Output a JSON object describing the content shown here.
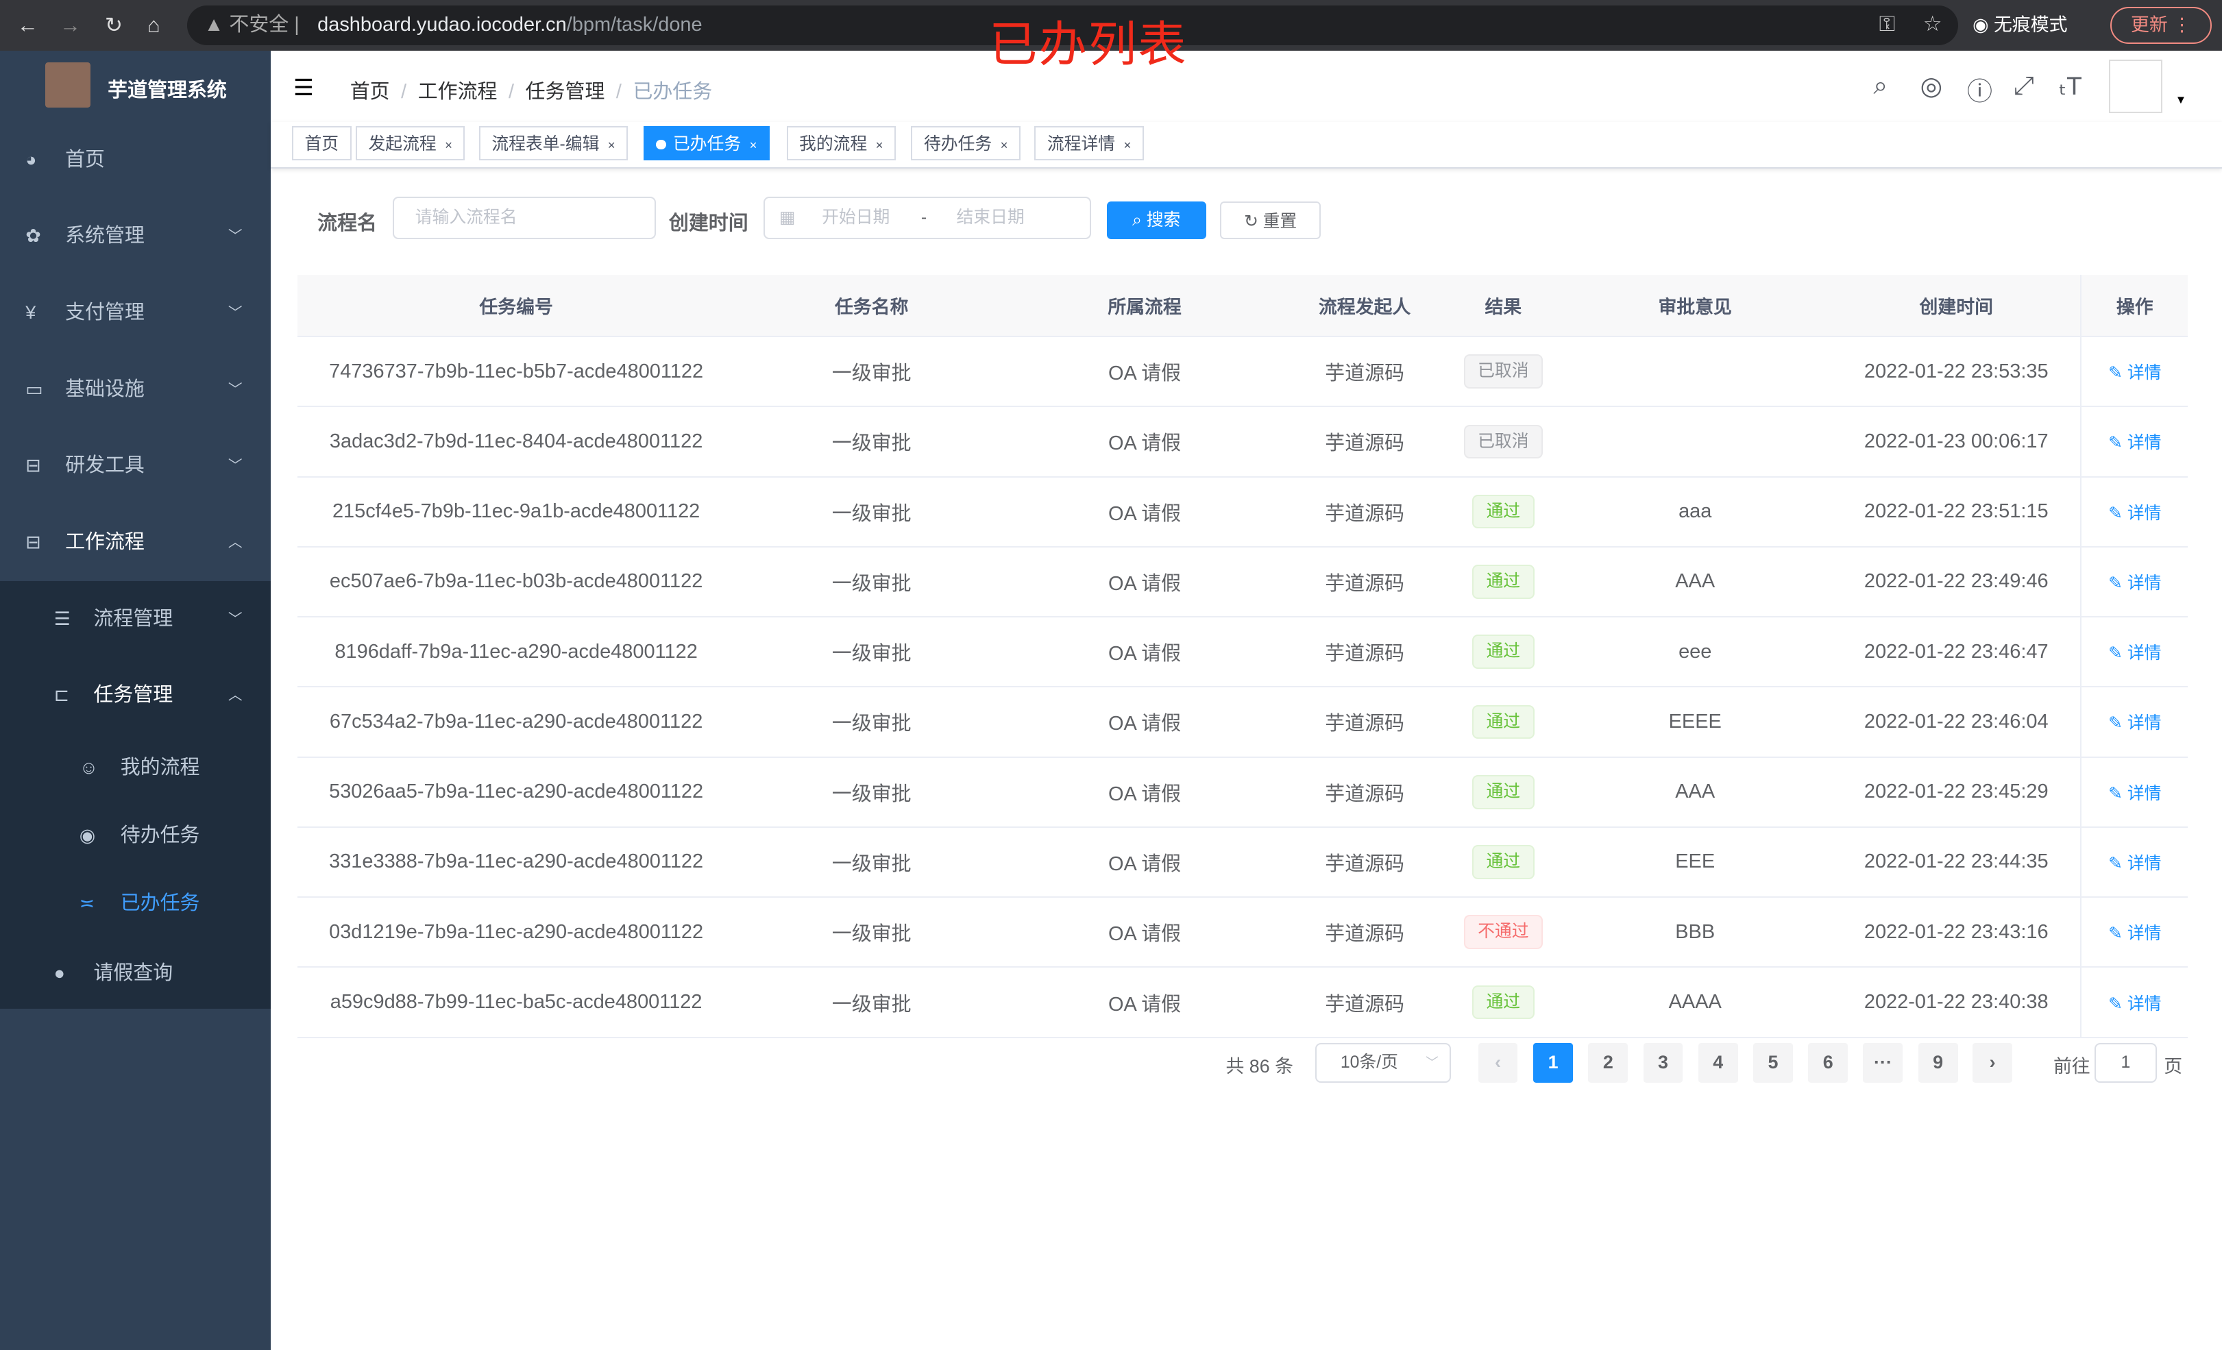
{
  "browser": {
    "insecure": "不安全",
    "url_host": "dashboard.yudao.iocoder.cn",
    "url_path": "/bpm/task/done",
    "incognito": "无痕模式",
    "update": "更新"
  },
  "annotation": "已办列表",
  "sidebar": {
    "brand": "芋道管理系统",
    "items": [
      {
        "label": "首页",
        "icon": "dashboard-icon"
      },
      {
        "label": "系统管理",
        "icon": "gear-icon"
      },
      {
        "label": "支付管理",
        "icon": "yen-icon"
      },
      {
        "label": "基础设施",
        "icon": "monitor-icon"
      },
      {
        "label": "研发工具",
        "icon": "toolbox-icon"
      },
      {
        "label": "工作流程",
        "icon": "toolbox-icon"
      },
      {
        "label": "流程管理",
        "icon": "list-icon"
      },
      {
        "label": "任务管理",
        "icon": "tree-icon"
      },
      {
        "label": "我的流程",
        "icon": "face-icon"
      },
      {
        "label": "待办任务",
        "icon": "eye-icon"
      },
      {
        "label": "已办任务",
        "icon": "eye-closed-icon"
      },
      {
        "label": "请假查询",
        "icon": "user-icon"
      }
    ]
  },
  "breadcrumb": [
    "首页",
    "工作流程",
    "任务管理",
    "已办任务"
  ],
  "tabs": [
    "首页",
    "发起流程",
    "流程表单-编辑",
    "已办任务",
    "我的流程",
    "待办任务",
    "流程详情"
  ],
  "search": {
    "name_label": "流程名",
    "name_placeholder": "请输入流程名",
    "time_label": "创建时间",
    "start_placeholder": "开始日期",
    "sep": "-",
    "end_placeholder": "结束日期",
    "search_btn": "搜索",
    "reset_btn": "重置"
  },
  "table": {
    "headers": [
      "任务编号",
      "任务名称",
      "所属流程",
      "流程发起人",
      "结果",
      "审批意见",
      "创建时间",
      "操作"
    ],
    "rows": [
      [
        "74736737-7b9b-11ec-b5b7-acde48001122",
        "一级审批",
        "OA 请假",
        "芋道源码",
        "已取消",
        "",
        "2022-01-22 23:53:35",
        "详情"
      ],
      [
        "3adac3d2-7b9d-11ec-8404-acde48001122",
        "一级审批",
        "OA 请假",
        "芋道源码",
        "已取消",
        "",
        "2022-01-23 00:06:17",
        "详情"
      ],
      [
        "215cf4e5-7b9b-11ec-9a1b-acde48001122",
        "一级审批",
        "OA 请假",
        "芋道源码",
        "通过",
        "aaa",
        "2022-01-22 23:51:15",
        "详情"
      ],
      [
        "ec507ae6-7b9a-11ec-b03b-acde48001122",
        "一级审批",
        "OA 请假",
        "芋道源码",
        "通过",
        "AAA",
        "2022-01-22 23:49:46",
        "详情"
      ],
      [
        "8196daff-7b9a-11ec-a290-acde48001122",
        "一级审批",
        "OA 请假",
        "芋道源码",
        "通过",
        "eee",
        "2022-01-22 23:46:47",
        "详情"
      ],
      [
        "67c534a2-7b9a-11ec-a290-acde48001122",
        "一级审批",
        "OA 请假",
        "芋道源码",
        "通过",
        "EEEE",
        "2022-01-22 23:46:04",
        "详情"
      ],
      [
        "53026aa5-7b9a-11ec-a290-acde48001122",
        "一级审批",
        "OA 请假",
        "芋道源码",
        "通过",
        "AAA",
        "2022-01-22 23:45:29",
        "详情"
      ],
      [
        "331e3388-7b9a-11ec-a290-acde48001122",
        "一级审批",
        "OA 请假",
        "芋道源码",
        "通过",
        "EEE",
        "2022-01-22 23:44:35",
        "详情"
      ],
      [
        "03d1219e-7b9a-11ec-a290-acde48001122",
        "一级审批",
        "OA 请假",
        "芋道源码",
        "不通过",
        "BBB",
        "2022-01-22 23:43:16",
        "详情"
      ],
      [
        "a59c9d88-7b99-11ec-ba5c-acde48001122",
        "一级审批",
        "OA 请假",
        "芋道源码",
        "通过",
        "AAAA",
        "2022-01-22 23:40:38",
        "详情"
      ]
    ]
  },
  "pagination": {
    "total": "共 86 条",
    "page_size": "10条/页",
    "pages": [
      "1",
      "2",
      "3",
      "4",
      "5",
      "6",
      "···",
      "9"
    ],
    "current": "1",
    "goto_label": "前往",
    "goto_value": "1",
    "goto_suffix": "页"
  }
}
